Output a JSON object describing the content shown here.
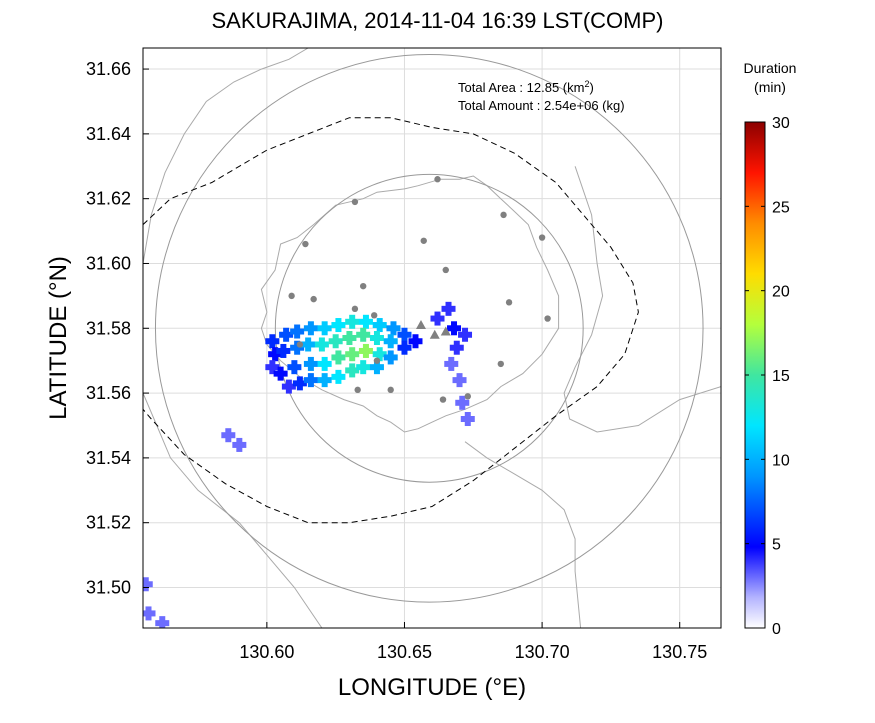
{
  "title": "SAKURAJIMA, 2014-11-04 16:39 LST(COMP)",
  "xlabel": "LONGITUDE (°E)",
  "ylabel": "LATITUDE (°N)",
  "info": {
    "area_label": "Total Area   : 12.85 (km",
    "area_sup": "2",
    "area_close": ")",
    "amount_label": "Total Amount : 2.54e+06 (kg)"
  },
  "colorbar": {
    "title_line1": "Duration",
    "title_line2": "(min)",
    "range": [
      0,
      30
    ],
    "ticks": [
      "0",
      "5",
      "10",
      "15",
      "20",
      "25",
      "30"
    ]
  },
  "map": {
    "xlim": [
      130.555,
      130.765
    ],
    "ylim": [
      31.4875,
      31.6665
    ],
    "xticks": [
      130.6,
      130.65,
      130.7,
      130.75
    ],
    "xtick_labels": [
      "130.60",
      "130.65",
      "130.70",
      "130.75"
    ],
    "yticks": [
      31.5,
      31.52,
      31.54,
      31.56,
      31.58,
      31.6,
      31.62,
      31.64,
      31.66
    ],
    "ytick_labels": [
      "31.50",
      "31.52",
      "31.54",
      "31.56",
      "31.58",
      "31.60",
      "31.62",
      "31.64",
      "31.66"
    ],
    "colors": {
      "gray_circle": "#999999",
      "station": "#808080",
      "coast": "#aaaaaa",
      "grid": "#dddddd"
    },
    "range_circles": [
      {
        "center": [
          130.659,
          31.58
        ],
        "radius_deg_lat": 0.0475
      },
      {
        "center": [
          130.659,
          31.58
        ],
        "radius_deg_lat": 0.0845
      }
    ],
    "dashed_boundary": [
      [
        130.555,
        31.612
      ],
      [
        130.565,
        31.62
      ],
      [
        130.58,
        31.625
      ],
      [
        130.59,
        31.63
      ],
      [
        130.6,
        31.635
      ],
      [
        130.615,
        31.64
      ],
      [
        130.63,
        31.645
      ],
      [
        130.645,
        31.645
      ],
      [
        130.66,
        31.642
      ],
      [
        130.675,
        31.64
      ],
      [
        130.69,
        31.634
      ],
      [
        130.705,
        31.625
      ],
      [
        130.715,
        31.615
      ],
      [
        130.725,
        31.605
      ],
      [
        130.733,
        31.594
      ],
      [
        130.735,
        31.585
      ],
      [
        130.73,
        31.572
      ],
      [
        130.72,
        31.562
      ],
      [
        130.705,
        31.553
      ],
      [
        130.69,
        31.543
      ],
      [
        130.675,
        31.533
      ],
      [
        130.66,
        31.525
      ],
      [
        130.645,
        31.522
      ],
      [
        130.63,
        31.52
      ],
      [
        130.615,
        31.52
      ],
      [
        130.6,
        31.525
      ],
      [
        130.585,
        31.532
      ],
      [
        130.57,
        31.541
      ],
      [
        130.558,
        31.552
      ],
      [
        130.555,
        31.555
      ]
    ],
    "island_coast": [
      [
        130.6,
        31.585
      ],
      [
        130.598,
        31.592
      ],
      [
        130.603,
        31.598
      ],
      [
        130.605,
        31.606
      ],
      [
        130.611,
        31.608
      ],
      [
        130.617,
        31.612
      ],
      [
        130.625,
        31.618
      ],
      [
        130.635,
        31.62
      ],
      [
        130.64,
        31.622
      ],
      [
        130.65,
        31.623
      ],
      [
        130.655,
        31.624
      ],
      [
        130.663,
        31.626
      ],
      [
        130.67,
        31.626
      ],
      [
        130.675,
        31.627
      ],
      [
        130.68,
        31.624
      ],
      [
        130.685,
        31.62
      ],
      [
        130.69,
        31.616
      ],
      [
        130.695,
        31.612
      ],
      [
        130.698,
        31.605
      ],
      [
        130.702,
        31.598
      ],
      [
        130.706,
        31.59
      ],
      [
        130.706,
        31.58
      ],
      [
        130.7,
        31.572
      ],
      [
        130.693,
        31.566
      ],
      [
        130.685,
        31.562
      ],
      [
        130.68,
        31.558
      ],
      [
        130.672,
        31.555
      ],
      [
        130.665,
        31.553
      ],
      [
        130.66,
        31.551
      ],
      [
        130.655,
        31.549
      ],
      [
        130.65,
        31.548
      ],
      [
        130.645,
        31.551
      ],
      [
        130.64,
        31.553
      ],
      [
        130.635,
        31.556
      ],
      [
        130.628,
        31.558
      ],
      [
        130.62,
        31.561
      ],
      [
        130.612,
        31.565
      ],
      [
        130.605,
        31.57
      ],
      [
        130.6,
        31.575
      ],
      [
        130.598,
        31.58
      ],
      [
        130.6,
        31.585
      ]
    ],
    "mainland_north_coast": [
      [
        130.555,
        31.6
      ],
      [
        130.558,
        31.615
      ],
      [
        130.563,
        31.628
      ],
      [
        130.57,
        31.64
      ],
      [
        130.578,
        31.65
      ],
      [
        130.588,
        31.656
      ],
      [
        130.598,
        31.66
      ],
      [
        130.608,
        31.663
      ],
      [
        130.615,
        31.6665
      ]
    ],
    "mainland_east_coast": [
      [
        130.712,
        31.63
      ],
      [
        130.718,
        31.615
      ],
      [
        130.72,
        31.6
      ],
      [
        130.722,
        31.59
      ],
      [
        130.718,
        31.578
      ],
      [
        130.712,
        31.568
      ],
      [
        130.708,
        31.56
      ],
      [
        130.71,
        31.552
      ],
      [
        130.72,
        31.548
      ],
      [
        130.735,
        31.55
      ],
      [
        130.75,
        31.558
      ],
      [
        130.765,
        31.562
      ]
    ],
    "mainland_south_coast": [
      [
        130.672,
        31.545
      ],
      [
        130.68,
        31.54
      ],
      [
        130.69,
        31.535
      ],
      [
        130.7,
        31.53
      ],
      [
        130.708,
        31.524
      ],
      [
        130.712,
        31.515
      ],
      [
        130.712,
        31.505
      ],
      [
        130.714,
        31.4875
      ]
    ],
    "mainland_west_coast": [
      [
        130.555,
        31.56
      ],
      [
        130.56,
        31.55
      ],
      [
        130.565,
        31.54
      ],
      [
        130.575,
        31.53
      ],
      [
        130.59,
        31.52
      ],
      [
        130.6,
        31.51
      ],
      [
        130.61,
        31.5
      ],
      [
        130.62,
        31.4875
      ]
    ],
    "stations": [
      [
        130.614,
        31.606
      ],
      [
        130.632,
        31.619
      ],
      [
        130.662,
        31.626
      ],
      [
        130.686,
        31.615
      ],
      [
        130.7,
        31.608
      ],
      [
        130.657,
        31.607
      ],
      [
        130.665,
        31.598
      ],
      [
        130.609,
        31.59
      ],
      [
        130.617,
        31.589
      ],
      [
        130.632,
        31.586
      ],
      [
        130.639,
        31.584
      ],
      [
        130.688,
        31.588
      ],
      [
        130.702,
        31.583
      ],
      [
        130.612,
        31.575
      ],
      [
        130.64,
        31.57
      ],
      [
        130.633,
        31.561
      ],
      [
        130.645,
        31.561
      ],
      [
        130.664,
        31.558
      ],
      [
        130.673,
        31.559
      ],
      [
        130.685,
        31.569
      ],
      [
        130.635,
        31.593
      ]
    ],
    "vents": [
      [
        130.656,
        31.581
      ],
      [
        130.661,
        31.578
      ],
      [
        130.665,
        31.579
      ]
    ],
    "ash_cells": [
      [
        130.602,
        31.576,
        6
      ],
      [
        130.603,
        31.572,
        5
      ],
      [
        130.602,
        31.568,
        4
      ],
      [
        130.607,
        31.578,
        7
      ],
      [
        130.606,
        31.573,
        6
      ],
      [
        130.605,
        31.566,
        5
      ],
      [
        130.608,
        31.562,
        4
      ],
      [
        130.611,
        31.579,
        8
      ],
      [
        130.611,
        31.574,
        8
      ],
      [
        130.61,
        31.568,
        7
      ],
      [
        130.612,
        31.563,
        6
      ],
      [
        130.616,
        31.58,
        9
      ],
      [
        130.615,
        31.575,
        10
      ],
      [
        130.616,
        31.569,
        9
      ],
      [
        130.616,
        31.564,
        8
      ],
      [
        130.621,
        31.58,
        11
      ],
      [
        130.62,
        31.575,
        13
      ],
      [
        130.621,
        31.569,
        12
      ],
      [
        130.621,
        31.564,
        10
      ],
      [
        130.626,
        31.581,
        12
      ],
      [
        130.625,
        31.576,
        14
      ],
      [
        130.626,
        31.571,
        15
      ],
      [
        130.626,
        31.565,
        12
      ],
      [
        130.631,
        31.582,
        13
      ],
      [
        130.63,
        31.577,
        15
      ],
      [
        130.631,
        31.572,
        16
      ],
      [
        130.631,
        31.567,
        14
      ],
      [
        130.636,
        31.582,
        12
      ],
      [
        130.635,
        31.578,
        15
      ],
      [
        130.636,
        31.573,
        17
      ],
      [
        130.635,
        31.568,
        13
      ],
      [
        130.641,
        31.581,
        11
      ],
      [
        130.64,
        31.577,
        13
      ],
      [
        130.641,
        31.572,
        13
      ],
      [
        130.64,
        31.568,
        10
      ],
      [
        130.646,
        31.58,
        9
      ],
      [
        130.645,
        31.576,
        10
      ],
      [
        130.645,
        31.571,
        9
      ],
      [
        130.65,
        31.578,
        7
      ],
      [
        130.65,
        31.574,
        6
      ],
      [
        130.654,
        31.576,
        5
      ],
      [
        130.662,
        31.583,
        4
      ],
      [
        130.666,
        31.586,
        4
      ],
      [
        130.668,
        31.58,
        5
      ],
      [
        130.669,
        31.574,
        4
      ],
      [
        130.667,
        31.569,
        3
      ],
      [
        130.672,
        31.578,
        4
      ],
      [
        130.67,
        31.564,
        3
      ],
      [
        130.671,
        31.557,
        3
      ],
      [
        130.673,
        31.552,
        3
      ],
      [
        130.586,
        31.547,
        3
      ],
      [
        130.59,
        31.544,
        3
      ],
      [
        130.556,
        31.501,
        3
      ],
      [
        130.557,
        31.492,
        3
      ],
      [
        130.562,
        31.489,
        3
      ]
    ]
  }
}
